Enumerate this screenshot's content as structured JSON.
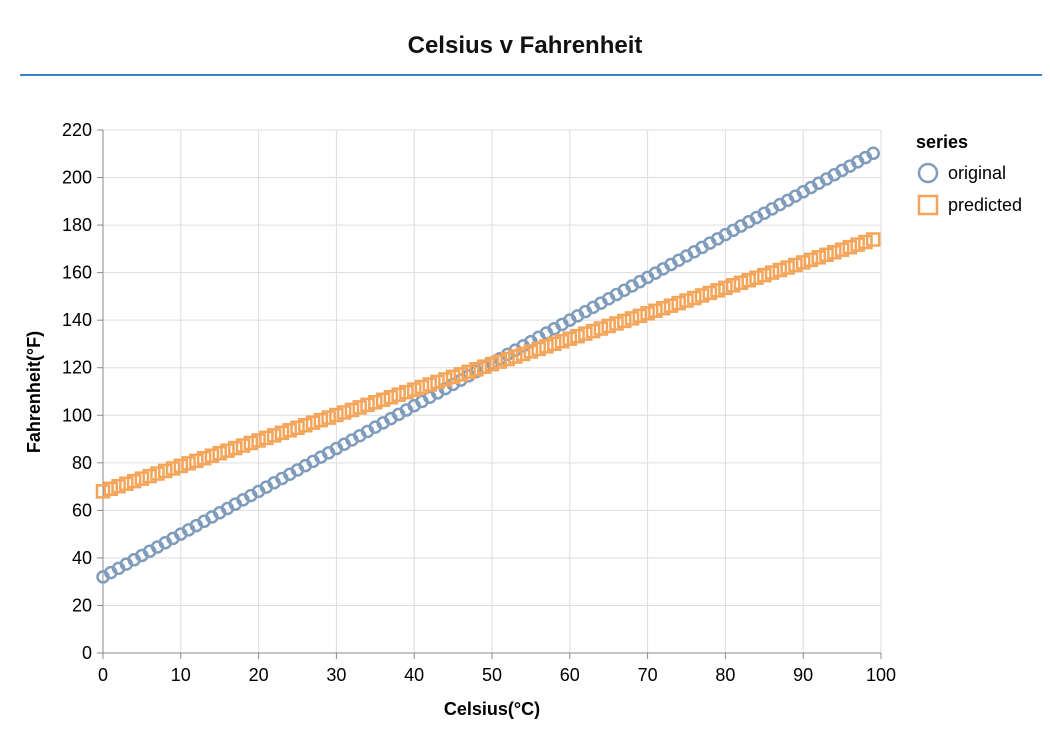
{
  "chart_data": {
    "type": "scatter",
    "title": "Celsius v Fahrenheit",
    "xlabel": "Celsius(°C)",
    "ylabel": "Fahrenheit(°F)",
    "xlim": [
      0,
      100
    ],
    "ylim": [
      0,
      220
    ],
    "x_ticks": [
      0,
      10,
      20,
      30,
      40,
      50,
      60,
      70,
      80,
      90,
      100
    ],
    "y_ticks": [
      0,
      20,
      40,
      60,
      80,
      100,
      120,
      140,
      160,
      180,
      200,
      220
    ],
    "grid": true,
    "legend": {
      "title": "series",
      "placement": "right"
    },
    "series": [
      {
        "name": "original",
        "marker": "circle",
        "color": "#7f9cbc",
        "x": [
          0,
          1,
          2,
          3,
          4,
          5,
          6,
          7,
          8,
          9,
          10,
          11,
          12,
          13,
          14,
          15,
          16,
          17,
          18,
          19,
          20,
          21,
          22,
          23,
          24,
          25,
          26,
          27,
          28,
          29,
          30,
          31,
          32,
          33,
          34,
          35,
          36,
          37,
          38,
          39,
          40,
          41,
          42,
          43,
          44,
          45,
          46,
          47,
          48,
          49,
          50,
          51,
          52,
          53,
          54,
          55,
          56,
          57,
          58,
          59,
          60,
          61,
          62,
          63,
          64,
          65,
          66,
          67,
          68,
          69,
          70,
          71,
          72,
          73,
          74,
          75,
          76,
          77,
          78,
          79,
          80,
          81,
          82,
          83,
          84,
          85,
          86,
          87,
          88,
          89,
          90,
          91,
          92,
          93,
          94,
          95,
          96,
          97,
          98,
          99
        ],
        "y": [
          32.0,
          33.8,
          35.6,
          37.4,
          39.2,
          41.0,
          42.8,
          44.6,
          46.4,
          48.2,
          50.0,
          51.8,
          53.6,
          55.4,
          57.2,
          59.0,
          60.8,
          62.6,
          64.4,
          66.2,
          68.0,
          69.8,
          71.6,
          73.4,
          75.2,
          77.0,
          78.8,
          80.6,
          82.4,
          84.2,
          86.0,
          87.8,
          89.6,
          91.4,
          93.2,
          95.0,
          96.8,
          98.6,
          100.4,
          102.2,
          104.0,
          105.8,
          107.6,
          109.4,
          111.2,
          113.0,
          114.8,
          116.6,
          118.4,
          120.2,
          122.0,
          123.8,
          125.6,
          127.4,
          129.2,
          131.0,
          132.8,
          134.6,
          136.4,
          138.2,
          140.0,
          141.8,
          143.6,
          145.4,
          147.2,
          149.0,
          150.8,
          152.6,
          154.4,
          156.2,
          158.0,
          159.8,
          161.6,
          163.4,
          165.2,
          167.0,
          168.8,
          170.6,
          172.4,
          174.2,
          176.0,
          177.8,
          179.6,
          181.4,
          183.2,
          185.0,
          186.8,
          188.6,
          190.4,
          192.2,
          194.0,
          195.8,
          197.6,
          199.4,
          201.2,
          203.0,
          204.8,
          206.6,
          208.4,
          210.2
        ]
      },
      {
        "name": "predicted",
        "marker": "square",
        "color": "#f5a55a",
        "x": [
          0,
          1,
          2,
          3,
          4,
          5,
          6,
          7,
          8,
          9,
          10,
          11,
          12,
          13,
          14,
          15,
          16,
          17,
          18,
          19,
          20,
          21,
          22,
          23,
          24,
          25,
          26,
          27,
          28,
          29,
          30,
          31,
          32,
          33,
          34,
          35,
          36,
          37,
          38,
          39,
          40,
          41,
          42,
          43,
          44,
          45,
          46,
          47,
          48,
          49,
          50,
          51,
          52,
          53,
          54,
          55,
          56,
          57,
          58,
          59,
          60,
          61,
          62,
          63,
          64,
          65,
          66,
          67,
          68,
          69,
          70,
          71,
          72,
          73,
          74,
          75,
          76,
          77,
          78,
          79,
          80,
          81,
          82,
          83,
          84,
          85,
          86,
          87,
          88,
          89,
          90,
          91,
          92,
          93,
          94,
          95,
          96,
          97,
          98,
          99
        ],
        "y": [
          68.0,
          69.07,
          70.14,
          71.21,
          72.28,
          73.35,
          74.42,
          75.49,
          76.56,
          77.63,
          78.7,
          79.77,
          80.84,
          81.91,
          82.98,
          84.05,
          85.12,
          86.19,
          87.26,
          88.33,
          89.4,
          90.47,
          91.54,
          92.61,
          93.68,
          94.75,
          95.82,
          96.89,
          97.96,
          99.03,
          100.1,
          101.17,
          102.24,
          103.31,
          104.38,
          105.45,
          106.52,
          107.59,
          108.66,
          109.73,
          110.8,
          111.87,
          112.94,
          114.01,
          115.08,
          116.15,
          117.22,
          118.29,
          119.36,
          120.43,
          121.5,
          122.57,
          123.64,
          124.71,
          125.78,
          126.85,
          127.92,
          128.99,
          130.06,
          131.13,
          132.2,
          133.27,
          134.34,
          135.41,
          136.48,
          137.55,
          138.62,
          139.69,
          140.76,
          141.83,
          142.9,
          143.97,
          145.04,
          146.11,
          147.18,
          148.25,
          149.32,
          150.39,
          151.46,
          152.53,
          153.6,
          154.67,
          155.74,
          156.81,
          157.88,
          158.95,
          160.02,
          161.09,
          162.16,
          163.23,
          164.3,
          165.37,
          166.44,
          167.51,
          168.58,
          169.65,
          170.72,
          171.79,
          172.86,
          173.93
        ]
      }
    ]
  }
}
